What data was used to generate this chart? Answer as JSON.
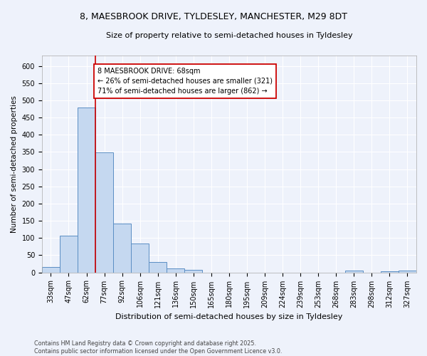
{
  "title_line1": "8, MAESBROOK DRIVE, TYLDESLEY, MANCHESTER, M29 8DT",
  "title_line2": "Size of property relative to semi-detached houses in Tyldesley",
  "xlabel": "Distribution of semi-detached houses by size in Tyldesley",
  "ylabel": "Number of semi-detached properties",
  "categories": [
    "33sqm",
    "47sqm",
    "62sqm",
    "77sqm",
    "92sqm",
    "106sqm",
    "121sqm",
    "136sqm",
    "150sqm",
    "165sqm",
    "180sqm",
    "195sqm",
    "209sqm",
    "224sqm",
    "239sqm",
    "253sqm",
    "268sqm",
    "283sqm",
    "298sqm",
    "312sqm",
    "327sqm"
  ],
  "values": [
    15,
    106,
    480,
    348,
    141,
    84,
    30,
    11,
    7,
    0,
    0,
    0,
    0,
    0,
    0,
    0,
    0,
    5,
    0,
    4,
    5
  ],
  "bar_color": "#c5d8f0",
  "bar_edge_color": "#5b8ec4",
  "property_line_x": 2.5,
  "property_size": "68sqm",
  "pct_smaller": 26,
  "count_smaller": 321,
  "pct_larger": 71,
  "count_larger": 862,
  "annotation_box_color": "#ffffff",
  "annotation_box_edge": "#cc0000",
  "red_line_color": "#cc0000",
  "ylim": [
    0,
    630
  ],
  "yticks": [
    0,
    50,
    100,
    150,
    200,
    250,
    300,
    350,
    400,
    450,
    500,
    550,
    600
  ],
  "footnote": "Contains HM Land Registry data © Crown copyright and database right 2025.\nContains public sector information licensed under the Open Government Licence v3.0.",
  "background_color": "#eef2fb",
  "grid_color": "#ffffff",
  "title1_fontsize": 9.0,
  "title2_fontsize": 8.0,
  "xlabel_fontsize": 8.0,
  "ylabel_fontsize": 7.5,
  "tick_fontsize": 7.0,
  "annot_fontsize": 7.0,
  "footnote_fontsize": 5.8
}
